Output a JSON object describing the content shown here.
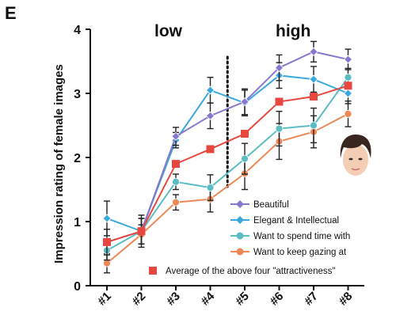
{
  "panel_letter": "E",
  "region_labels": {
    "low": "low",
    "high": "high"
  },
  "chart_data": {
    "type": "line",
    "categories": [
      "#1",
      "#2",
      "#3",
      "#4",
      "#5",
      "#6",
      "#7",
      "#8"
    ],
    "ylabel": "Impression rating of female images",
    "xlabel": "",
    "ylim": [
      0,
      4
    ],
    "yticks": [
      0,
      1,
      2,
      3,
      4
    ],
    "grid": false,
    "legend_position": "bottom-right",
    "divider_between": [
      "#4",
      "#5"
    ],
    "series": [
      {
        "name": "Beautiful",
        "marker": "diamond",
        "color": "#8877cc",
        "values": [
          0.68,
          0.85,
          2.33,
          2.65,
          2.87,
          3.4,
          3.65,
          3.53
        ],
        "errors": [
          0.2,
          0.2,
          0.14,
          0.2,
          0.2,
          0.2,
          0.16,
          0.16
        ]
      },
      {
        "name": "Elegant & Intellectual",
        "marker": "diamond",
        "color": "#3aa9e0",
        "values": [
          1.05,
          0.85,
          2.27,
          3.05,
          2.85,
          3.28,
          3.22,
          3.0
        ],
        "errors": [
          0.27,
          0.25,
          0.12,
          0.2,
          0.2,
          0.2,
          0.2,
          0.16
        ]
      },
      {
        "name": "Want to spend time with",
        "marker": "circle",
        "color": "#5bbcc4",
        "values": [
          0.55,
          0.85,
          1.62,
          1.53,
          1.98,
          2.45,
          2.5,
          3.25
        ],
        "errors": [
          0.15,
          0.2,
          0.12,
          0.2,
          0.24,
          0.27,
          0.27,
          0.14
        ]
      },
      {
        "name": "Want to keep gazing at",
        "marker": "circle",
        "color": "#ee8855",
        "values": [
          0.35,
          0.8,
          1.3,
          1.35,
          1.75,
          2.25,
          2.4,
          2.68
        ],
        "errors": [
          0.15,
          0.15,
          0.12,
          0.2,
          0.25,
          0.28,
          0.25,
          0.2
        ]
      },
      {
        "name": "Average of the above four \"attractiveness\"",
        "marker": "square",
        "color": "#e8473f",
        "values": [
          0.68,
          0.85,
          1.9,
          2.13,
          2.37,
          2.87,
          2.95,
          3.12
        ],
        "errors": [
          0,
          0,
          0,
          0,
          0,
          0,
          0,
          0
        ]
      }
    ]
  },
  "face_image": {
    "icon": "female-face-photo",
    "description_color": "#f2c9b0"
  }
}
